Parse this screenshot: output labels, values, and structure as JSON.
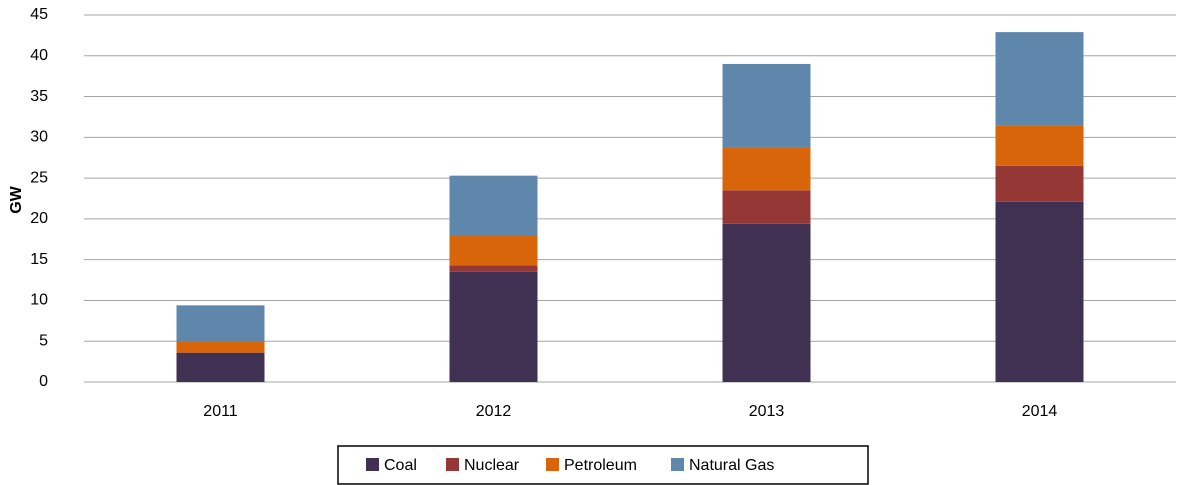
{
  "chart_data": {
    "type": "stacked_bar",
    "y_label": "GW",
    "categories": [
      "2011",
      "2012",
      "2013",
      "2014"
    ],
    "series": [
      {
        "name": "Coal",
        "color": "#403152",
        "values": [
          3.6,
          13.5,
          19.4,
          22.1
        ]
      },
      {
        "name": "Nuclear",
        "color": "#953735",
        "values": [
          0,
          0.8,
          4.1,
          4.4
        ]
      },
      {
        "name": "Petroleum",
        "color": "#d9650b",
        "values": [
          1.4,
          3.6,
          5.2,
          4.9
        ]
      },
      {
        "name": "Natural Gas",
        "color": "#5e87ab",
        "values": [
          4.4,
          7.4,
          10.3,
          11.5
        ]
      }
    ],
    "ylim": [
      0,
      45
    ],
    "yticks": [
      0,
      5,
      10,
      15,
      20,
      25,
      30,
      35,
      40,
      45
    ],
    "grid": true,
    "legend": "bottom"
  }
}
